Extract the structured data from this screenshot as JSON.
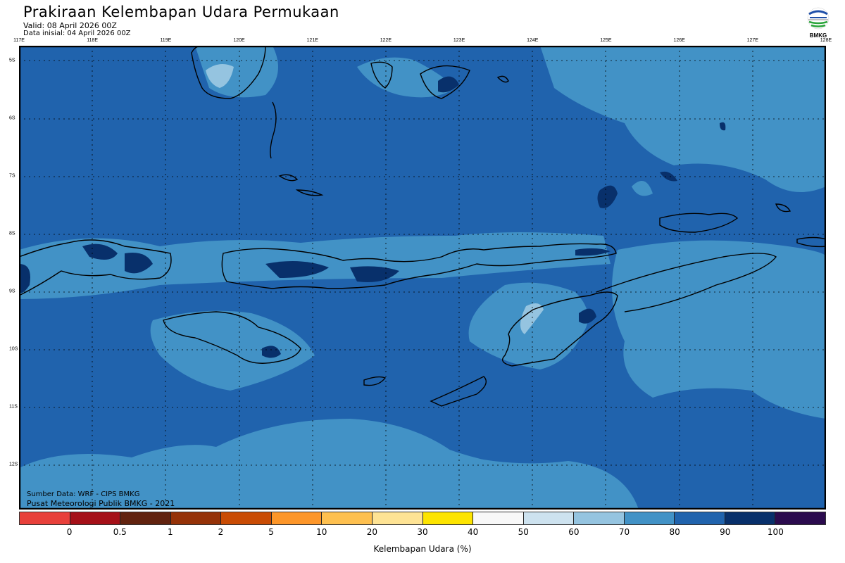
{
  "header": {
    "title": "Prakiraan Kelembapan Udara Permukaan",
    "valid": "Valid: 08 April 2026 00Z",
    "initial": "Data inisial: 04 April 2026 00Z",
    "logo_text": "BMKG"
  },
  "map": {
    "lon_labels": [
      "117E",
      "118E",
      "119E",
      "120E",
      "121E",
      "122E",
      "123E",
      "124E",
      "125E",
      "126E",
      "127E",
      "128E"
    ],
    "lat_labels": [
      "5S",
      "6S",
      "7S",
      "8S",
      "9S",
      "10S",
      "11S",
      "12S"
    ],
    "background_class_color": "#2063ad",
    "credit_source": "Sumber Data: WRF - CIPS BMKG",
    "credit_org": "Pusat Meteorologi Publik BMKG - 2021"
  },
  "colorbar": {
    "colors": [
      "#e8403a",
      "#a51018",
      "#62230f",
      "#953208",
      "#c94c04",
      "#fd9629",
      "#fec04f",
      "#fee394",
      "#fde400",
      "#f8f8f8",
      "#cde2ef",
      "#95c4e0",
      "#4292c6",
      "#2063ad",
      "#08306b",
      "#2b0b4e"
    ],
    "ticks": [
      "0",
      "0.5",
      "1",
      "2",
      "5",
      "10",
      "20",
      "30",
      "40",
      "50",
      "60",
      "70",
      "80",
      "90",
      "100"
    ],
    "title": "Kelembapan Udara (%)"
  }
}
